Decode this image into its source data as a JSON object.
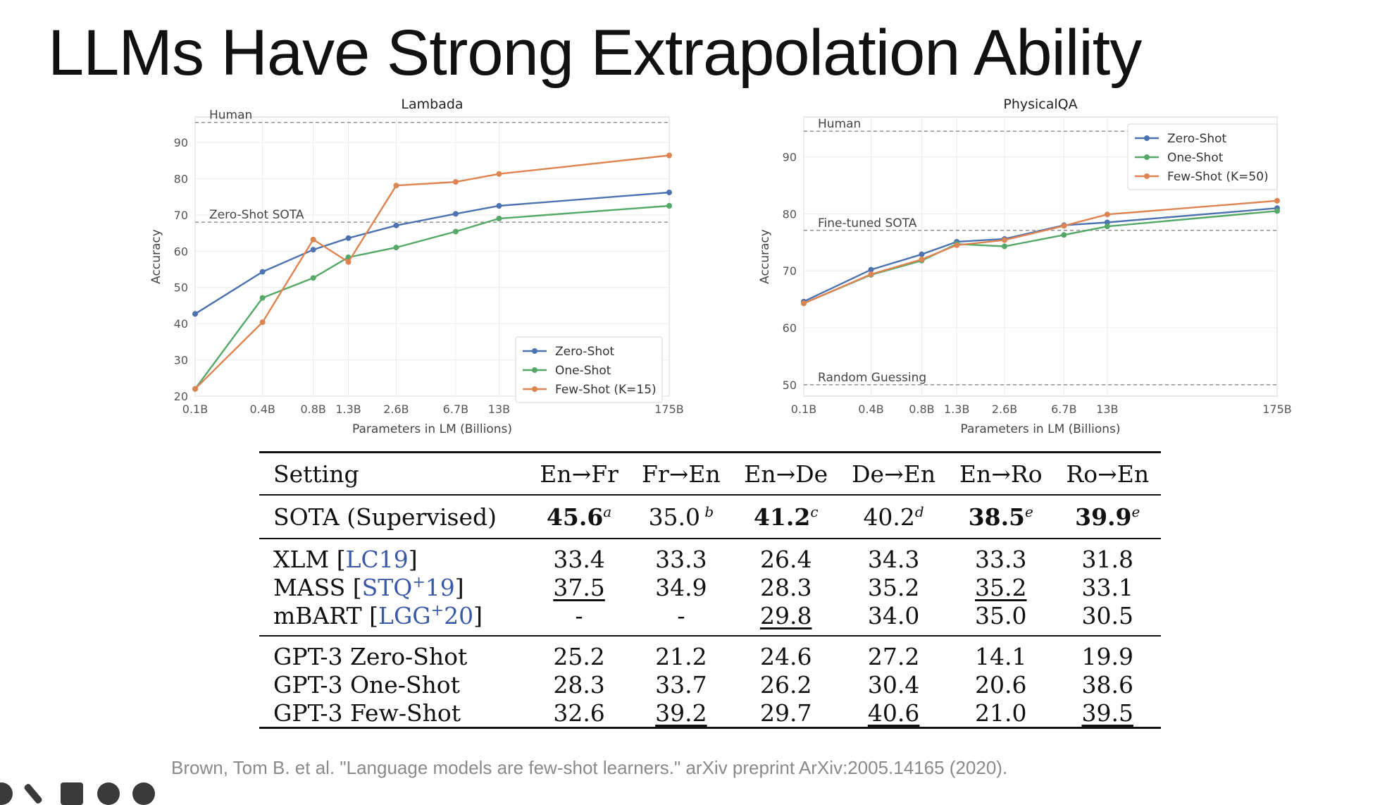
{
  "slide": {
    "title": "LLMs Have Strong Extrapolation Ability",
    "citation": "Brown, Tom B. et al. \"Language models are few-shot learners.\" arXiv preprint ArXiv:2005.14165 (2020)."
  },
  "chart_data": [
    {
      "type": "line",
      "title": "Lambada",
      "xlabel": "Parameters in LM (Billions)",
      "ylabel": "Accuracy",
      "x_scale": "log",
      "categories": [
        "0.1B",
        "0.4B",
        "0.8B",
        "1.3B",
        "2.6B",
        "6.7B",
        "13B",
        "175B"
      ],
      "x": [
        0.125,
        0.35,
        0.76,
        1.3,
        2.7,
        6.7,
        13,
        175
      ],
      "ylim": [
        20,
        97
      ],
      "yticks": [
        20,
        30,
        40,
        50,
        60,
        70,
        80,
        90
      ],
      "grid": true,
      "legend_position": "lower-right",
      "reference_lines": [
        {
          "label": "Human",
          "y": 95.5
        },
        {
          "label": "Zero-Shot SOTA",
          "y": 68
        }
      ],
      "series": [
        {
          "name": "Zero-Shot",
          "color": "#4c72b0",
          "values": [
            42.7,
            54.3,
            60.4,
            63.6,
            67.1,
            70.3,
            72.5,
            76.2
          ]
        },
        {
          "name": "One-Shot",
          "color": "#55a868",
          "values": [
            22,
            47.1,
            52.6,
            58.3,
            61.0,
            65.4,
            69.0,
            72.5
          ]
        },
        {
          "name": "Few-Shot (K=15)",
          "color": "#dd8452",
          "values": [
            22,
            40.4,
            63.2,
            57.0,
            78.1,
            79.1,
            81.3,
            86.4
          ]
        }
      ]
    },
    {
      "type": "line",
      "title": "PhysicalQA",
      "xlabel": "Parameters in LM (Billions)",
      "ylabel": "Accuracy",
      "x_scale": "log",
      "categories": [
        "0.1B",
        "0.4B",
        "0.8B",
        "1.3B",
        "2.6B",
        "6.7B",
        "13B",
        "175B"
      ],
      "x": [
        0.125,
        0.35,
        0.76,
        1.3,
        2.7,
        6.7,
        13,
        175
      ],
      "ylim": [
        48,
        97
      ],
      "yticks": [
        50,
        60,
        70,
        80,
        90
      ],
      "grid": true,
      "legend_position": "upper-right",
      "reference_lines": [
        {
          "label": "Human",
          "y": 94.5
        },
        {
          "label": "Fine-tuned SOTA",
          "y": 77.1
        },
        {
          "label": "Random Guessing",
          "y": 50
        }
      ],
      "series": [
        {
          "name": "Zero-Shot",
          "color": "#4c72b0",
          "values": [
            64.6,
            70.2,
            72.9,
            75.1,
            75.6,
            78.0,
            78.5,
            81.0
          ]
        },
        {
          "name": "One-Shot",
          "color": "#55a868",
          "values": [
            64.3,
            69.3,
            71.8,
            74.7,
            74.3,
            76.3,
            77.8,
            80.5
          ]
        },
        {
          "name": "Few-Shot (K=50)",
          "color": "#dd8452",
          "values": [
            64.3,
            69.4,
            72.0,
            74.5,
            75.4,
            77.9,
            79.9,
            82.3
          ]
        }
      ]
    },
    {
      "type": "table",
      "columns": [
        "Setting",
        "En→Fr",
        "Fr→En",
        "En→De",
        "De→En",
        "En→Ro",
        "Ro→En"
      ],
      "sota": {
        "label": "SOTA (Supervised)",
        "cells": [
          {
            "v": "45.6",
            "sup": "a",
            "bold": true
          },
          {
            "v": "35.0",
            "sup": " b",
            "bold": false
          },
          {
            "v": "41.2",
            "sup": "c",
            "bold": true
          },
          {
            "v": "40.2",
            "sup": "d",
            "bold": false
          },
          {
            "v": "38.5",
            "sup": "e",
            "bold": true
          },
          {
            "v": "39.9",
            "sup": "e",
            "bold": true
          }
        ]
      },
      "groups": [
        [
          {
            "name": "XLM",
            "cite": "LC19",
            "cite_sup": "",
            "cells": [
              {
                "v": "33.4"
              },
              {
                "v": "33.3"
              },
              {
                "v": "26.4"
              },
              {
                "v": "34.3"
              },
              {
                "v": "33.3"
              },
              {
                "v": "31.8"
              }
            ]
          },
          {
            "name": "MASS",
            "cite": "STQ",
            "cite_sup": "+",
            "cite_tail": "19",
            "cells": [
              {
                "v": "37.5",
                "u": true
              },
              {
                "v": "34.9"
              },
              {
                "v": "28.3"
              },
              {
                "v": "35.2"
              },
              {
                "v": "35.2",
                "u": true
              },
              {
                "v": "33.1"
              }
            ]
          },
          {
            "name": "mBART",
            "cite": "LGG",
            "cite_sup": "+",
            "cite_tail": "20",
            "cells": [
              {
                "v": "-"
              },
              {
                "v": "-"
              },
              {
                "v": "29.8",
                "u": true
              },
              {
                "v": "34.0"
              },
              {
                "v": "35.0"
              },
              {
                "v": "30.5"
              }
            ]
          }
        ],
        [
          {
            "name": "GPT-3 Zero-Shot",
            "cells": [
              {
                "v": "25.2"
              },
              {
                "v": "21.2"
              },
              {
                "v": "24.6"
              },
              {
                "v": "27.2"
              },
              {
                "v": "14.1"
              },
              {
                "v": "19.9"
              }
            ]
          },
          {
            "name": "GPT-3 One-Shot",
            "cells": [
              {
                "v": "28.3"
              },
              {
                "v": "33.7"
              },
              {
                "v": "26.2"
              },
              {
                "v": "30.4"
              },
              {
                "v": "20.6"
              },
              {
                "v": "38.6"
              }
            ]
          },
          {
            "name": "GPT-3 Few-Shot",
            "cells": [
              {
                "v": "32.6"
              },
              {
                "v": "39.2",
                "u": true
              },
              {
                "v": "29.7"
              },
              {
                "v": "40.6",
                "u": true
              },
              {
                "v": "21.0"
              },
              {
                "v": "39.5",
                "u": true
              }
            ]
          }
        ]
      ]
    }
  ]
}
